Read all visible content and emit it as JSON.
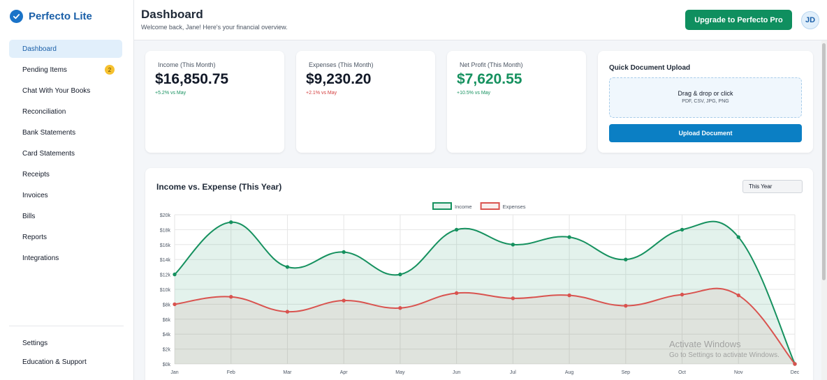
{
  "app": {
    "name": "Perfecto Lite"
  },
  "sidebar": {
    "items": [
      {
        "label": "Dashboard",
        "active": true
      },
      {
        "label": "Pending Items",
        "badge": "2"
      },
      {
        "label": "Chat With Your Books"
      },
      {
        "label": "Reconciliation"
      },
      {
        "label": "Bank Statements"
      },
      {
        "label": "Card Statements"
      },
      {
        "label": "Receipts"
      },
      {
        "label": "Invoices"
      },
      {
        "label": "Bills"
      },
      {
        "label": "Reports"
      },
      {
        "label": "Integrations"
      }
    ],
    "bottom_items": [
      {
        "label": "Settings"
      },
      {
        "label": "Education & Support"
      }
    ]
  },
  "header": {
    "title": "Dashboard",
    "subtitle": "Welcome back, Jane! Here's your financial overview.",
    "upgrade_label": "Upgrade to Perfecto Pro",
    "avatar_initials": "JD"
  },
  "stats": [
    {
      "label": "Income (This Month)",
      "value": "$16,850.75",
      "delta": "+5.2% vs May",
      "trend": "up"
    },
    {
      "label": "Expenses (This Month)",
      "value": "$9,230.20",
      "delta": "+2.1% vs May",
      "trend": "down"
    },
    {
      "label": "Net Profit (This Month)",
      "value": "$7,620.55",
      "delta": "+10.5% vs May",
      "trend": "up"
    }
  ],
  "upload": {
    "title": "Quick Document Upload",
    "drop_text": "Drag & drop or click",
    "formats": "PDF, CSV, JPG, PNG",
    "button_label": "Upload Document"
  },
  "chart_card": {
    "title": "Income vs. Expense (This Year)",
    "period": "This Year"
  },
  "chart_data": {
    "type": "line",
    "title": "Income vs. Expense (This Year)",
    "categories": [
      "Jan",
      "Feb",
      "Mar",
      "Apr",
      "May",
      "Jun",
      "Jul",
      "Aug",
      "Sep",
      "Oct",
      "Nov",
      "Dec"
    ],
    "series": [
      {
        "name": "Income",
        "values": [
          12000,
          19000,
          13000,
          15000,
          12000,
          18000,
          16000,
          17000,
          14000,
          18000,
          17000,
          0
        ],
        "color": "#16915f",
        "fill": "rgba(22,145,95,0.12)"
      },
      {
        "name": "Expenses",
        "values": [
          8000,
          9000,
          7000,
          8500,
          7500,
          9500,
          8800,
          9200,
          7800,
          9300,
          9200,
          0
        ],
        "color": "#d9534f",
        "fill": "rgba(200,100,90,0.10)"
      }
    ],
    "y_ticks": [
      "$0k",
      "$2k",
      "$4k",
      "$6k",
      "$8k",
      "$10k",
      "$12k",
      "$14k",
      "$16k",
      "$18k",
      "$20k"
    ],
    "ylim": [
      0,
      20000
    ],
    "grid": true,
    "legend": "top-center"
  },
  "watermark": {
    "line1": "Activate Windows",
    "line2": "Go to Settings to activate Windows."
  }
}
